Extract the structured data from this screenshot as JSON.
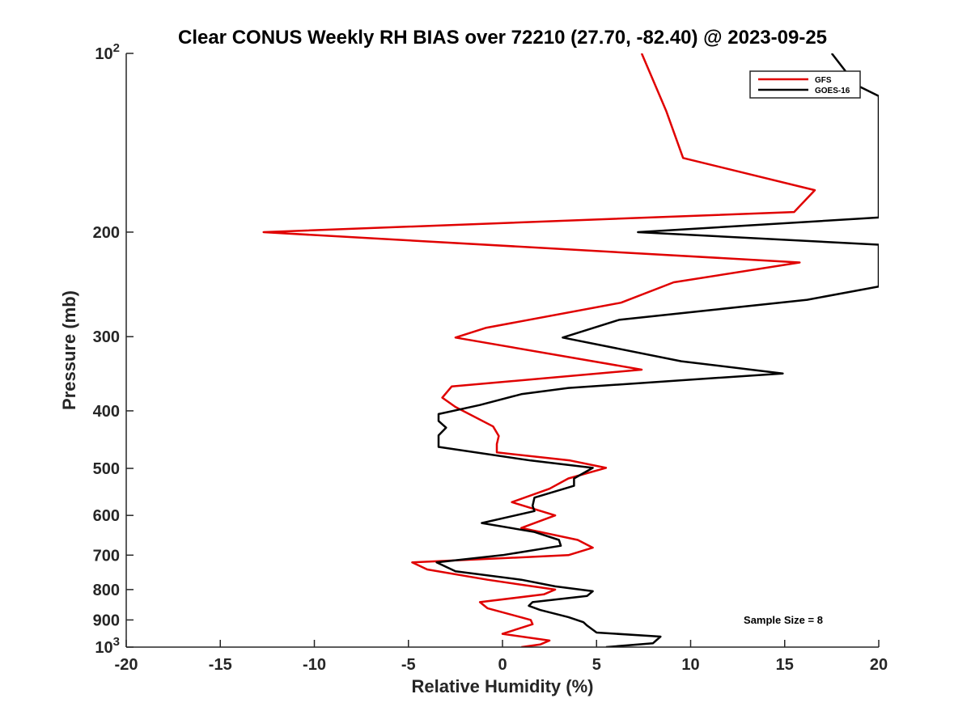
{
  "chart_data": {
    "type": "line",
    "title": "Clear CONUS Weekly RH BIAS over 72210 (27.70, -82.40) @ 2023-09-25",
    "xlabel": "Relative Humidity (%)",
    "ylabel": "Pressure (mb)",
    "xlim": [
      -20,
      20
    ],
    "ylim": [
      100,
      1000
    ],
    "y_scale": "log",
    "y_reversed": true,
    "x_ticks": [
      -20,
      -15,
      -10,
      -5,
      0,
      5,
      10,
      15,
      20
    ],
    "x_tick_labels": [
      "-20",
      "-15",
      "-10",
      "-5",
      "0",
      "5",
      "10",
      "15",
      "20"
    ],
    "y_ticks": [
      200,
      300,
      400,
      500,
      600,
      700,
      800,
      900
    ],
    "y_tick_labels": [
      "200",
      "300",
      "400",
      "500",
      "600",
      "700",
      "800",
      "900"
    ],
    "y_end_labels": [
      {
        "value": 100,
        "base": "10",
        "exp": "2"
      },
      {
        "value": 1000,
        "base": "10",
        "exp": "3"
      }
    ],
    "grid": false,
    "legend_position": "top-right",
    "annotation": "Sample Size = 8",
    "series": [
      {
        "name": "GFS",
        "color": "#e00000",
        "points": [
          [
            7.4,
            100
          ],
          [
            8.7,
            125
          ],
          [
            9.6,
            150
          ],
          [
            16.6,
            170
          ],
          [
            15.5,
            185
          ],
          [
            -12.7,
            200
          ],
          [
            15.8,
            225
          ],
          [
            9.1,
            243
          ],
          [
            6.3,
            263
          ],
          [
            -0.9,
            290
          ],
          [
            -2.5,
            301
          ],
          [
            7.4,
            341
          ],
          [
            -2.7,
            364
          ],
          [
            -3.2,
            380
          ],
          [
            -2.5,
            394
          ],
          [
            -0.5,
            425
          ],
          [
            -0.2,
            441
          ],
          [
            -0.3,
            455
          ],
          [
            -0.3,
            470
          ],
          [
            3.6,
            485
          ],
          [
            5.5,
            499
          ],
          [
            3.5,
            520
          ],
          [
            2.5,
            541
          ],
          [
            0.5,
            570
          ],
          [
            2.8,
            600
          ],
          [
            1.0,
            630
          ],
          [
            4.0,
            660
          ],
          [
            4.8,
            680
          ],
          [
            3.5,
            700
          ],
          [
            -4.8,
            720
          ],
          [
            -4.0,
            740
          ],
          [
            -0.8,
            770
          ],
          [
            2.8,
            800
          ],
          [
            2.2,
            815
          ],
          [
            -1.2,
            840
          ],
          [
            -0.8,
            860
          ],
          [
            1.5,
            900
          ],
          [
            1.6,
            915
          ],
          [
            0.0,
            950
          ],
          [
            2.5,
            975
          ],
          [
            2.0,
            990
          ],
          [
            1.0,
            1000
          ]
        ]
      },
      {
        "name": "GOES-16",
        "color": "#000000",
        "points": [
          [
            17.5,
            100
          ],
          [
            18.8,
            113
          ],
          [
            20.0,
            118
          ],
          [
            20,
            189
          ],
          [
            7.2,
            200
          ],
          [
            20,
            210
          ],
          [
            20,
            247
          ],
          [
            16.2,
            260
          ],
          [
            6.2,
            281
          ],
          [
            3.2,
            301
          ],
          [
            9.5,
            330
          ],
          [
            14.9,
            346
          ],
          [
            3.5,
            366
          ],
          [
            1.0,
            375
          ],
          [
            -1.2,
            391
          ],
          [
            -3.4,
            405
          ],
          [
            -3.4,
            416
          ],
          [
            -3.0,
            427
          ],
          [
            -3.4,
            440
          ],
          [
            -3.4,
            460
          ],
          [
            1.5,
            485
          ],
          [
            4.8,
            499
          ],
          [
            3.8,
            520
          ],
          [
            3.8,
            535
          ],
          [
            1.7,
            560
          ],
          [
            1.6,
            578
          ],
          [
            1.7,
            590
          ],
          [
            -1.1,
            618
          ],
          [
            1.7,
            640
          ],
          [
            3.0,
            660
          ],
          [
            3.1,
            675
          ],
          [
            0.0,
            700
          ],
          [
            -3.5,
            720
          ],
          [
            -2.5,
            745
          ],
          [
            1.0,
            770
          ],
          [
            2.8,
            790
          ],
          [
            4.8,
            805
          ],
          [
            4.5,
            820
          ],
          [
            1.6,
            840
          ],
          [
            1.4,
            852
          ],
          [
            2.0,
            866
          ],
          [
            3.5,
            890
          ],
          [
            4.3,
            908
          ],
          [
            4.5,
            920
          ],
          [
            5.0,
            945
          ],
          [
            8.4,
            960
          ],
          [
            8.0,
            985
          ],
          [
            5.5,
            1000
          ]
        ]
      }
    ]
  }
}
